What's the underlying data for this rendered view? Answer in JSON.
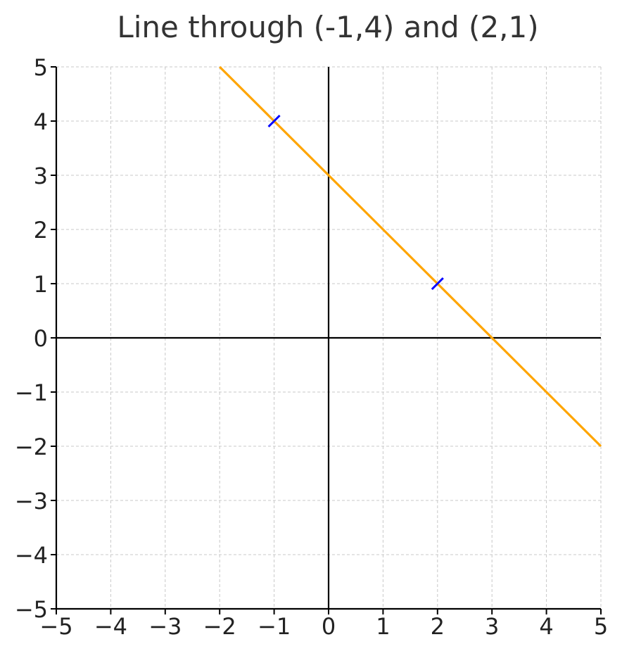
{
  "chart_data": {
    "type": "line",
    "title": "Line through (-1,4) and (2,1)",
    "xlabel": "",
    "ylabel": "",
    "xlim": [
      -5,
      5
    ],
    "ylim": [
      -5,
      5
    ],
    "x_ticks": [
      -5,
      -4,
      -3,
      -2,
      -1,
      0,
      1,
      2,
      3,
      4,
      5
    ],
    "y_ticks": [
      -5,
      -4,
      -3,
      -2,
      -1,
      0,
      1,
      2,
      3,
      4,
      5
    ],
    "x_tick_labels": [
      "−5",
      "−4",
      "−3",
      "−2",
      "−1",
      "0",
      "1",
      "2",
      "3",
      "4",
      "5"
    ],
    "y_tick_labels": [
      "−5",
      "−4",
      "−3",
      "−2",
      "−1",
      "0",
      "1",
      "2",
      "3",
      "4",
      "5"
    ],
    "grid": true,
    "show_axes_lines": true,
    "series": [
      {
        "kind": "line",
        "color": "#FFA500",
        "x": [
          -2,
          5
        ],
        "y": [
          5,
          -2
        ]
      },
      {
        "kind": "markers",
        "marker": "x",
        "color": "#0000FF",
        "x": [
          -1,
          2
        ],
        "y": [
          4,
          1
        ]
      }
    ],
    "colors": {
      "grid": "#c8c8c8",
      "axis": "#000000",
      "text": "#222222",
      "title": "#333333"
    }
  }
}
